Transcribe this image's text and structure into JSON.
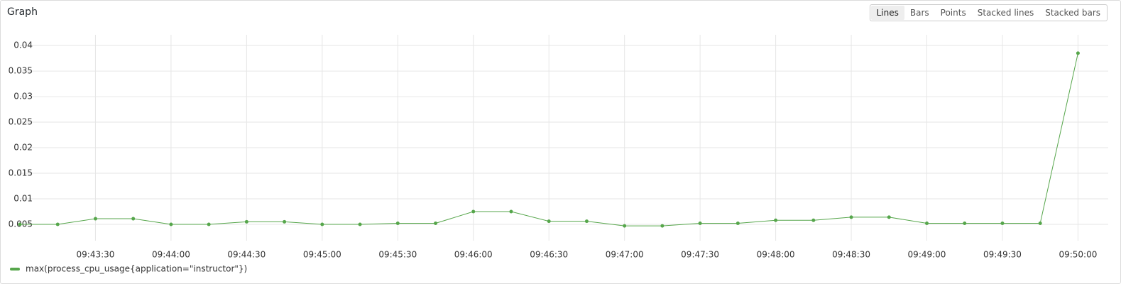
{
  "panel": {
    "title": "Graph",
    "buttons": [
      "Lines",
      "Bars",
      "Points",
      "Stacked lines",
      "Stacked bars"
    ],
    "selected": 0
  },
  "chart_data": {
    "type": "line",
    "x": [
      "09:43:00",
      "09:43:15",
      "09:43:30",
      "09:43:45",
      "09:44:00",
      "09:44:15",
      "09:44:30",
      "09:44:45",
      "09:45:00",
      "09:45:15",
      "09:45:30",
      "09:45:45",
      "09:46:00",
      "09:46:15",
      "09:46:30",
      "09:46:45",
      "09:47:00",
      "09:47:15",
      "09:47:30",
      "09:47:45",
      "09:48:00",
      "09:48:15",
      "09:48:30",
      "09:48:45",
      "09:49:00",
      "09:49:15",
      "09:49:30",
      "09:49:45",
      "09:50:00"
    ],
    "series": [
      {
        "name": "max(process_cpu_usage{application=\"instructor\"})",
        "color": "#56a64b",
        "values": [
          0.005,
          0.005,
          0.0061,
          0.0061,
          0.005,
          0.005,
          0.0055,
          0.0055,
          0.005,
          0.005,
          0.0052,
          0.0052,
          0.0075,
          0.0075,
          0.0056,
          0.0056,
          0.0047,
          0.0047,
          0.0052,
          0.0052,
          0.0058,
          0.0058,
          0.0064,
          0.0064,
          0.0052,
          0.0052,
          0.0052,
          0.0052,
          0.0385
        ]
      }
    ],
    "xlim": [
      "09:43:00",
      "09:50:12"
    ],
    "xticks": [
      "09:43:30",
      "09:44:00",
      "09:44:30",
      "09:45:00",
      "09:45:30",
      "09:46:00",
      "09:46:30",
      "09:47:00",
      "09:47:30",
      "09:48:00",
      "09:48:30",
      "09:49:00",
      "09:49:30",
      "09:50:00"
    ],
    "ylim": [
      0.0018,
      0.0421
    ],
    "yticks": [
      0.005,
      0.01,
      0.015,
      0.02,
      0.025,
      0.03,
      0.035,
      0.04
    ],
    "grid": true,
    "legend": "bottom-left"
  }
}
